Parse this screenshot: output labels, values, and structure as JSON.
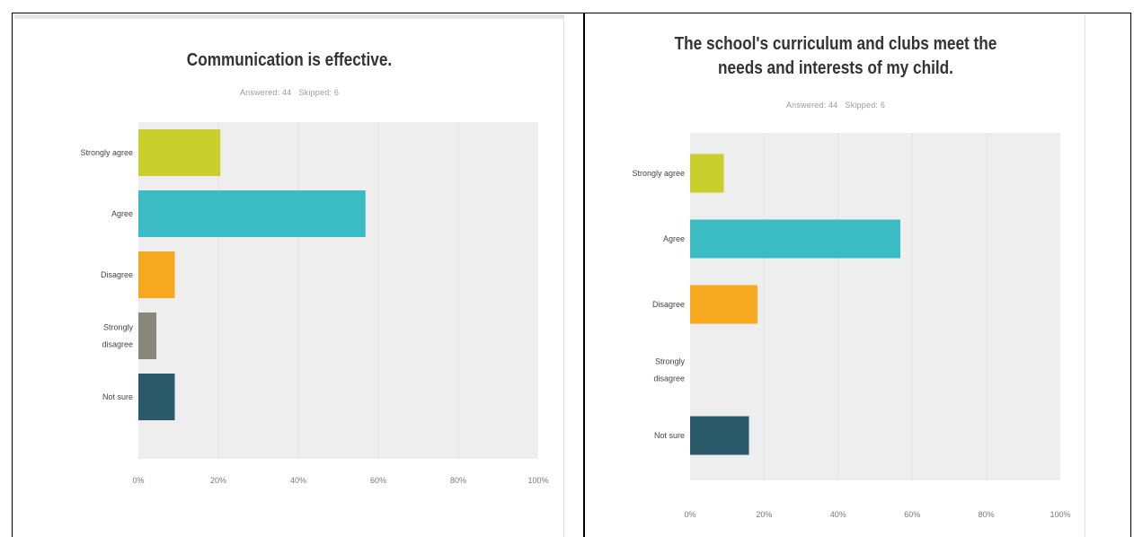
{
  "colors": {
    "strongly_agree": "#c9cf2d",
    "agree": "#3bbcc4",
    "disagree": "#f6a81e",
    "strongly_disagree": "#87877a",
    "not_sure": "#2b5a6b",
    "plot_bg": "#eeeeee",
    "grid": "#e2e2e2"
  },
  "chart_data": [
    {
      "type": "bar",
      "orientation": "horizontal",
      "title": "Communication is effective.",
      "answered": "Answered: 44",
      "skipped": "Skipped: 6",
      "categories": [
        "Strongly agree",
        "Agree",
        "Disagree",
        "Strongly disagree",
        "Not sure"
      ],
      "category_lines": [
        [
          "Strongly agree"
        ],
        [
          "Agree"
        ],
        [
          "Disagree"
        ],
        [
          "Strongly",
          "disagree"
        ],
        [
          "Not sure"
        ]
      ],
      "values": [
        20.5,
        56.8,
        9.1,
        4.5,
        9.1
      ],
      "xlim": [
        0,
        100
      ],
      "ticks": [
        "0%",
        "20%",
        "40%",
        "60%",
        "80%",
        "100%"
      ],
      "grid": true
    },
    {
      "type": "bar",
      "orientation": "horizontal",
      "title": "The school's curriculum and clubs meet the needs and interests of my child.",
      "title_lines": [
        "The school's curriculum and clubs meet the",
        "needs and interests of my child."
      ],
      "answered": "Answered: 44",
      "skipped": "Skipped: 6",
      "categories": [
        "Strongly agree",
        "Agree",
        "Disagree",
        "Strongly disagree",
        "Not sure"
      ],
      "category_lines": [
        [
          "Strongly agree"
        ],
        [
          "Agree"
        ],
        [
          "Disagree"
        ],
        [
          "Strongly",
          "disagree"
        ],
        [
          "Not sure"
        ]
      ],
      "values": [
        9.1,
        56.8,
        18.2,
        0,
        15.9
      ],
      "xlim": [
        0,
        100
      ],
      "ticks": [
        "0%",
        "20%",
        "40%",
        "60%",
        "80%",
        "100%"
      ],
      "grid": true
    }
  ]
}
